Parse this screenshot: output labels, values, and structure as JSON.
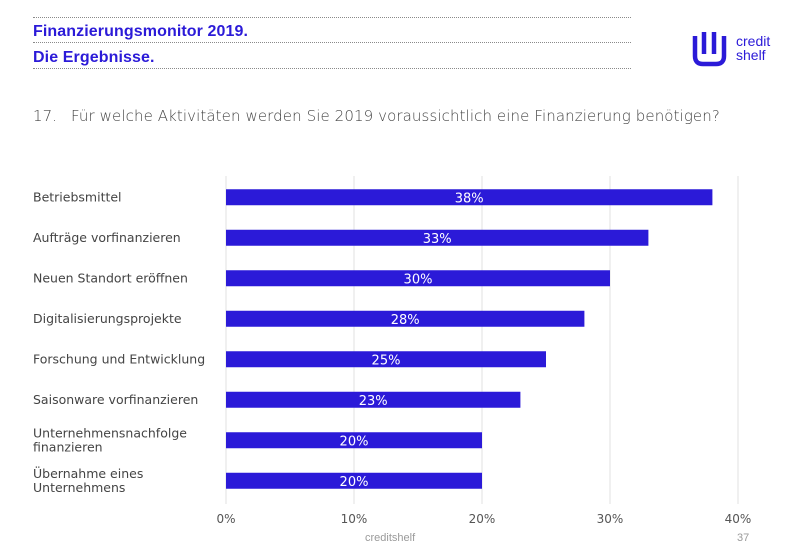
{
  "header": {
    "title_line1": "Finanzierungsmonitor 2019.",
    "title_line2": "Die Ergebnisse.",
    "brand_color": "#2b1ad8"
  },
  "logo": {
    "line1": "credit",
    "line2": "shelf",
    "icon": "creditshelf-logo-icon"
  },
  "question": {
    "number": "17.",
    "text": "Für welche Aktivitäten werden Sie 2019 voraussichtlich eine Finanzierung benötigen?"
  },
  "chart_data": {
    "type": "bar",
    "orientation": "horizontal",
    "categories": [
      [
        "Betriebsmittel"
      ],
      [
        "Aufträge vorfinanzieren"
      ],
      [
        "Neuen Standort eröffnen"
      ],
      [
        "Digitalisierungsprojekte"
      ],
      [
        "Forschung und Entwicklung"
      ],
      [
        "Saisonware vorfinanzieren"
      ],
      [
        "Unternehmensnachfolge",
        "finanzieren"
      ],
      [
        "Übernahme eines",
        "Unternehmens"
      ]
    ],
    "values": [
      38,
      33,
      30,
      28,
      25,
      23,
      20,
      20
    ],
    "data_labels": [
      "38%",
      "33%",
      "30%",
      "28%",
      "25%",
      "23%",
      "20%",
      "20%"
    ],
    "xticks": [
      0,
      10,
      20,
      30,
      40
    ],
    "xtick_labels": [
      "0%",
      "10%",
      "20%",
      "30%",
      "40%"
    ],
    "xlim": [
      0,
      40
    ],
    "grid": "vertical",
    "bar_color": "#2b1ad8"
  },
  "footer": {
    "brand": "creditshelf",
    "page": "37"
  }
}
